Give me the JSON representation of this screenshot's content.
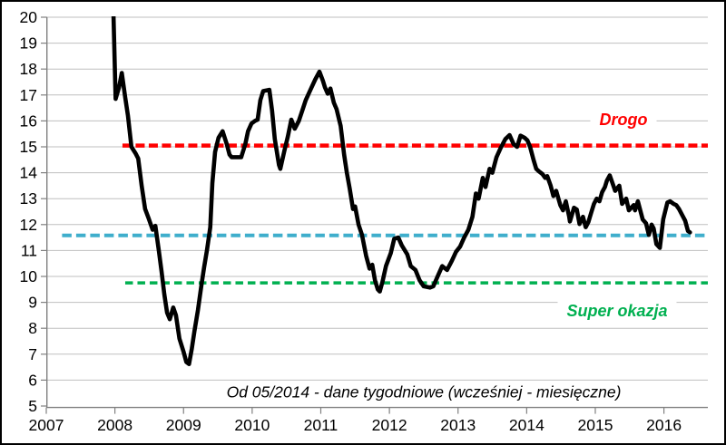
{
  "window": {
    "background": "#FFFFFF",
    "border_color": "#000000"
  },
  "chart_data": {
    "type": "line",
    "title": "",
    "xlabel": "",
    "ylabel": "",
    "grid": true,
    "gridline_color": "#BFBFBF",
    "axis_color": "#808080",
    "tick_label_color": "#000000",
    "x_axis": {
      "min": 2007,
      "max": 2016.64,
      "tick_values": [
        2007,
        2008,
        2009,
        2010,
        2011,
        2012,
        2013,
        2014,
        2015,
        2016
      ],
      "tick_labels": [
        "2007",
        "2008",
        "2009",
        "2010",
        "2011",
        "2012",
        "2013",
        "2014",
        "2015",
        "2016"
      ]
    },
    "y_axis": {
      "min": 5,
      "max": 20,
      "tick_values": [
        5,
        6,
        7,
        8,
        9,
        10,
        11,
        12,
        13,
        14,
        15,
        16,
        17,
        18,
        19,
        20
      ],
      "tick_labels": [
        "5",
        "6",
        "7",
        "8",
        "9",
        "10",
        "11",
        "12",
        "13",
        "14",
        "15",
        "16",
        "17",
        "18",
        "19",
        "20"
      ]
    },
    "series": [
      {
        "color": "#000000",
        "width": 4.6,
        "points": [
          [
            2007.97,
            21.0
          ],
          [
            2008.01,
            16.85
          ],
          [
            2008.06,
            17.3
          ],
          [
            2008.1,
            17.85
          ],
          [
            2008.15,
            16.9
          ],
          [
            2008.19,
            16.2
          ],
          [
            2008.24,
            15.0
          ],
          [
            2008.3,
            14.75
          ],
          [
            2008.34,
            14.55
          ],
          [
            2008.39,
            13.5
          ],
          [
            2008.44,
            12.6
          ],
          [
            2008.49,
            12.25
          ],
          [
            2008.55,
            11.8
          ],
          [
            2008.59,
            11.95
          ],
          [
            2008.64,
            11.0
          ],
          [
            2008.68,
            10.2
          ],
          [
            2008.72,
            9.3
          ],
          [
            2008.76,
            8.6
          ],
          [
            2008.8,
            8.35
          ],
          [
            2008.85,
            8.8
          ],
          [
            2008.89,
            8.5
          ],
          [
            2008.94,
            7.6
          ],
          [
            2009.0,
            7.1
          ],
          [
            2009.04,
            6.7
          ],
          [
            2009.08,
            6.62
          ],
          [
            2009.12,
            7.2
          ],
          [
            2009.16,
            7.9
          ],
          [
            2009.21,
            8.7
          ],
          [
            2009.26,
            9.65
          ],
          [
            2009.3,
            10.35
          ],
          [
            2009.34,
            11.0
          ],
          [
            2009.39,
            11.9
          ],
          [
            2009.42,
            13.6
          ],
          [
            2009.46,
            14.8
          ],
          [
            2009.51,
            15.35
          ],
          [
            2009.57,
            15.6
          ],
          [
            2009.63,
            15.1
          ],
          [
            2009.67,
            14.7
          ],
          [
            2009.7,
            14.6
          ],
          [
            2009.84,
            14.6
          ],
          [
            2009.9,
            15.1
          ],
          [
            2009.94,
            15.6
          ],
          [
            2009.99,
            15.9
          ],
          [
            2010.04,
            16.0
          ],
          [
            2010.08,
            16.05
          ],
          [
            2010.12,
            16.8
          ],
          [
            2010.16,
            17.15
          ],
          [
            2010.25,
            17.2
          ],
          [
            2010.29,
            16.4
          ],
          [
            2010.33,
            15.3
          ],
          [
            2010.39,
            14.3
          ],
          [
            2010.41,
            14.15
          ],
          [
            2010.47,
            14.85
          ],
          [
            2010.52,
            15.4
          ],
          [
            2010.57,
            16.05
          ],
          [
            2010.62,
            15.7
          ],
          [
            2010.68,
            16.0
          ],
          [
            2010.73,
            16.4
          ],
          [
            2010.78,
            16.8
          ],
          [
            2010.85,
            17.2
          ],
          [
            2010.92,
            17.6
          ],
          [
            2010.98,
            17.9
          ],
          [
            2011.03,
            17.55
          ],
          [
            2011.06,
            17.3
          ],
          [
            2011.1,
            17.05
          ],
          [
            2011.14,
            17.25
          ],
          [
            2011.19,
            16.7
          ],
          [
            2011.23,
            16.45
          ],
          [
            2011.29,
            15.8
          ],
          [
            2011.34,
            14.7
          ],
          [
            2011.38,
            14.0
          ],
          [
            2011.42,
            13.4
          ],
          [
            2011.47,
            12.6
          ],
          [
            2011.5,
            12.7
          ],
          [
            2011.55,
            12.0
          ],
          [
            2011.6,
            11.6
          ],
          [
            2011.66,
            10.8
          ],
          [
            2011.71,
            10.3
          ],
          [
            2011.75,
            10.45
          ],
          [
            2011.79,
            9.85
          ],
          [
            2011.83,
            9.5
          ],
          [
            2011.86,
            9.42
          ],
          [
            2011.9,
            9.8
          ],
          [
            2011.95,
            10.4
          ],
          [
            2012.02,
            10.9
          ],
          [
            2012.07,
            11.45
          ],
          [
            2012.13,
            11.5
          ],
          [
            2012.18,
            11.2
          ],
          [
            2012.26,
            10.85
          ],
          [
            2012.31,
            10.4
          ],
          [
            2012.38,
            10.25
          ],
          [
            2012.44,
            9.85
          ],
          [
            2012.5,
            9.62
          ],
          [
            2012.59,
            9.57
          ],
          [
            2012.64,
            9.62
          ],
          [
            2012.71,
            10.05
          ],
          [
            2012.77,
            10.4
          ],
          [
            2012.84,
            10.25
          ],
          [
            2012.91,
            10.6
          ],
          [
            2012.97,
            10.95
          ],
          [
            2013.03,
            11.15
          ],
          [
            2013.09,
            11.5
          ],
          [
            2013.15,
            11.8
          ],
          [
            2013.21,
            12.3
          ],
          [
            2013.26,
            13.2
          ],
          [
            2013.3,
            13.0
          ],
          [
            2013.36,
            13.8
          ],
          [
            2013.4,
            13.45
          ],
          [
            2013.46,
            14.15
          ],
          [
            2013.5,
            14.0
          ],
          [
            2013.56,
            14.6
          ],
          [
            2013.62,
            14.95
          ],
          [
            2013.69,
            15.3
          ],
          [
            2013.75,
            15.45
          ],
          [
            2013.81,
            15.1
          ],
          [
            2013.86,
            15.0
          ],
          [
            2013.91,
            15.43
          ],
          [
            2013.97,
            15.35
          ],
          [
            2014.01,
            15.25
          ],
          [
            2014.05,
            15.0
          ],
          [
            2014.1,
            14.5
          ],
          [
            2014.14,
            14.15
          ],
          [
            2014.18,
            14.05
          ],
          [
            2014.23,
            13.95
          ],
          [
            2014.27,
            13.8
          ],
          [
            2014.3,
            13.87
          ],
          [
            2014.35,
            13.5
          ],
          [
            2014.39,
            13.1
          ],
          [
            2014.43,
            13.3
          ],
          [
            2014.49,
            12.75
          ],
          [
            2014.53,
            12.55
          ],
          [
            2014.57,
            12.9
          ],
          [
            2014.62,
            12.3
          ],
          [
            2014.63,
            12.12
          ],
          [
            2014.69,
            12.65
          ],
          [
            2014.73,
            12.58
          ],
          [
            2014.77,
            12.02
          ],
          [
            2014.82,
            12.3
          ],
          [
            2014.86,
            11.9
          ],
          [
            2014.9,
            12.1
          ],
          [
            2014.94,
            12.45
          ],
          [
            2014.98,
            12.8
          ],
          [
            2015.02,
            13.0
          ],
          [
            2015.06,
            12.9
          ],
          [
            2015.1,
            13.25
          ],
          [
            2015.14,
            13.45
          ],
          [
            2015.17,
            13.7
          ],
          [
            2015.21,
            13.9
          ],
          [
            2015.25,
            13.6
          ],
          [
            2015.29,
            13.3
          ],
          [
            2015.35,
            13.5
          ],
          [
            2015.39,
            12.8
          ],
          [
            2015.45,
            13.0
          ],
          [
            2015.49,
            12.55
          ],
          [
            2015.56,
            12.75
          ],
          [
            2015.58,
            12.55
          ],
          [
            2015.62,
            12.9
          ],
          [
            2015.69,
            12.2
          ],
          [
            2015.74,
            12.05
          ],
          [
            2015.78,
            11.6
          ],
          [
            2015.82,
            12.0
          ],
          [
            2015.85,
            11.85
          ],
          [
            2015.89,
            11.25
          ],
          [
            2015.94,
            11.1
          ],
          [
            2015.99,
            12.2
          ],
          [
            2016.05,
            12.85
          ],
          [
            2016.09,
            12.9
          ],
          [
            2016.14,
            12.8
          ],
          [
            2016.18,
            12.75
          ],
          [
            2016.22,
            12.6
          ],
          [
            2016.27,
            12.35
          ],
          [
            2016.31,
            12.15
          ],
          [
            2016.35,
            11.75
          ],
          [
            2016.38,
            11.7
          ]
        ]
      }
    ],
    "reference_lines": [
      {
        "name": "drogo-line",
        "label": "Drogo",
        "value": 15.05,
        "color": "#FF0000",
        "start_x": 2008.11,
        "end_x": 2016.64,
        "dash": "10 4.5",
        "width": 4.5
      },
      {
        "name": "middle-line",
        "label": "",
        "value": 11.58,
        "color": "#3FAECC",
        "start_x": 2007.23,
        "end_x": 2016.64,
        "dash": "10.5 5",
        "width": 4
      },
      {
        "name": "super-okazja-line",
        "label": "Super okazja",
        "value": 9.75,
        "color": "#00B050",
        "start_x": 2008.15,
        "end_x": 2016.64,
        "dash": "8.5 5",
        "width": 3.5
      }
    ],
    "labels": {
      "drogo": {
        "text": "Drogo",
        "color": "#FF0000"
      },
      "super_okazja": {
        "text": "Super okazja",
        "color": "#00B050"
      }
    },
    "annotation": "Od 05/2014 - dane tygodniowe (wcześniej - miesięczne)"
  }
}
